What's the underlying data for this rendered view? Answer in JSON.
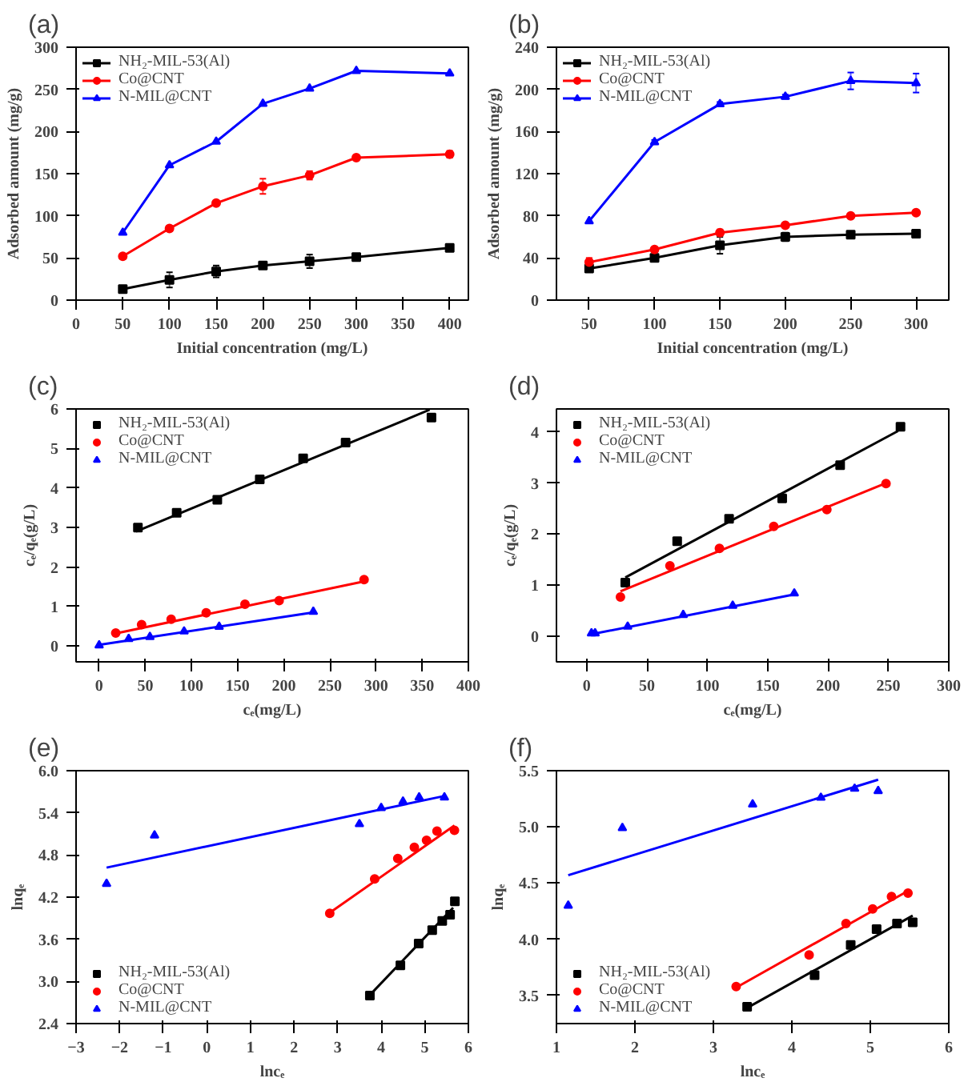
{
  "chart_data": [
    {
      "type": "line",
      "title": "(a)",
      "xlabel": "Initial concentration (mg/L)",
      "ylabel": "Adsorbed amount (mg/g)",
      "x": [
        50,
        100,
        150,
        200,
        250,
        300,
        400
      ],
      "xlim": [
        0,
        420
      ],
      "xticks": [
        0,
        50,
        100,
        150,
        200,
        250,
        300,
        350,
        400
      ],
      "ylim": [
        0,
        300
      ],
      "yticks": [
        0,
        50,
        100,
        150,
        200,
        250,
        300
      ],
      "grid": false,
      "legend": "top left",
      "series": [
        {
          "name": "NH₂-MIL-53(Al)",
          "color": "#000000",
          "marker": "square",
          "values": [
            13,
            24,
            34,
            41,
            46,
            51,
            62
          ],
          "errors": [
            2,
            9,
            7,
            3,
            8,
            3,
            3
          ]
        },
        {
          "name": "Co@CNT",
          "color": "#ff0000",
          "marker": "circle",
          "values": [
            52,
            85,
            115,
            135,
            148,
            169,
            173
          ],
          "errors": [
            3,
            3,
            3,
            9,
            5,
            3,
            4
          ]
        },
        {
          "name": "N-MIL@CNT",
          "color": "#0000ff",
          "marker": "triangle",
          "values": [
            80,
            160,
            188,
            233,
            251,
            272,
            269
          ]
        }
      ]
    },
    {
      "type": "line",
      "title": "(b)",
      "xlabel": "Initial concentration (mg/L)",
      "ylabel": "Adsorbed amount (mg/g)",
      "x": [
        50,
        100,
        150,
        200,
        250,
        300
      ],
      "xlim": [
        25,
        325
      ],
      "xticks": [
        50,
        100,
        150,
        200,
        250,
        300
      ],
      "ylim": [
        0,
        240
      ],
      "yticks": [
        0,
        40,
        80,
        120,
        160,
        200,
        240
      ],
      "grid": false,
      "legend": "top left",
      "series": [
        {
          "name": "NH₂-MIL-53(Al)",
          "color": "#000000",
          "marker": "square",
          "values": [
            30,
            40,
            52,
            60,
            62,
            63
          ],
          "errors": [
            2,
            2,
            8,
            4,
            2,
            3
          ]
        },
        {
          "name": "Co@CNT",
          "color": "#ff0000",
          "marker": "circle",
          "values": [
            36,
            48,
            64,
            71,
            80,
            83
          ],
          "errors": [
            4,
            2,
            3,
            2,
            2,
            2
          ]
        },
        {
          "name": "N-MIL@CNT",
          "color": "#0000ff",
          "marker": "triangle",
          "values": [
            75,
            150,
            186,
            193,
            208,
            206
          ],
          "errors": [
            null,
            2,
            2,
            2,
            8,
            9
          ]
        }
      ]
    },
    {
      "type": "scatter",
      "title": "(c)",
      "xlabel": "cₑ(mg/L)",
      "ylabel": "cₑ/qₑ(g/L)",
      "xlim": [
        -25,
        400
      ],
      "xticks": [
        0,
        50,
        100,
        150,
        200,
        250,
        300,
        350,
        400
      ],
      "ylim": [
        -0.4,
        6
      ],
      "yticks": [
        0,
        1,
        2,
        3,
        4,
        5,
        6
      ],
      "grid": false,
      "legend": "top left",
      "series": [
        {
          "name": "NH₂-MIL-53(Al)",
          "color": "#000000",
          "marker": "square",
          "x": [
            42,
            84,
            128,
            174,
            221,
            267,
            360
          ],
          "values": [
            3.0,
            3.37,
            3.7,
            4.22,
            4.75,
            5.15,
            5.78
          ]
        },
        {
          "name": "Co@CNT",
          "color": "#ff0000",
          "marker": "circle",
          "x": [
            18,
            46,
            78,
            116,
            158,
            195,
            287
          ],
          "values": [
            0.33,
            0.54,
            0.68,
            0.84,
            1.06,
            1.15,
            1.68
          ]
        },
        {
          "name": "N-MIL@CNT",
          "color": "#0000ff",
          "marker": "triangle",
          "x": [
            0,
            32,
            55,
            92,
            130,
            232
          ],
          "values": [
            0.02,
            0.18,
            0.23,
            0.37,
            0.49,
            0.87
          ]
        },
        {
          "type": "line",
          "color": "#000000",
          "marker": "none",
          "line_style": "solid",
          "x": [
            40,
            358
          ],
          "values": [
            2.9,
            5.98
          ]
        },
        {
          "type": "line",
          "color": "#ff0000",
          "marker": "none",
          "line_style": "solid",
          "x": [
            18,
            288
          ],
          "values": [
            0.32,
            1.64
          ]
        },
        {
          "type": "line",
          "color": "#0000ff",
          "marker": "none",
          "line_style": "solid",
          "x": [
            0,
            232
          ],
          "values": [
            0.03,
            0.85
          ]
        }
      ]
    },
    {
      "type": "scatter",
      "title": "(d)",
      "xlabel": "cₑ(mg/L)",
      "ylabel": "cₑ/qₑ(g/L)",
      "xlim": [
        -25,
        300
      ],
      "xticks": [
        0,
        50,
        100,
        150,
        200,
        250,
        300
      ],
      "ylim": [
        -0.5,
        4.45
      ],
      "yticks": [
        0,
        1,
        2,
        3,
        4
      ],
      "grid": false,
      "legend": "top left",
      "series": [
        {
          "name": "NH₂-MIL-53(Al)",
          "color": "#000000",
          "marker": "square",
          "x": [
            32,
            75,
            118,
            162,
            210,
            260
          ],
          "values": [
            1.05,
            1.86,
            2.3,
            2.7,
            3.35,
            4.1
          ]
        },
        {
          "name": "Co@CNT",
          "color": "#ff0000",
          "marker": "circle",
          "x": [
            28,
            69,
            110,
            155,
            199,
            248
          ],
          "values": [
            0.77,
            1.38,
            1.72,
            2.15,
            2.48,
            2.99
          ]
        },
        {
          "name": "N-MIL@CNT",
          "color": "#0000ff",
          "marker": "triangle",
          "x": [
            4,
            7,
            34,
            80,
            121,
            172
          ],
          "values": [
            0.06,
            0.06,
            0.19,
            0.42,
            0.6,
            0.84
          ]
        },
        {
          "type": "line",
          "color": "#000000",
          "marker": "none",
          "line_style": "solid",
          "x": [
            32,
            258
          ],
          "values": [
            1.15,
            4.02
          ]
        },
        {
          "type": "line",
          "color": "#ff0000",
          "marker": "none",
          "line_style": "solid",
          "x": [
            28,
            248
          ],
          "values": [
            0.88,
            3.0
          ]
        },
        {
          "type": "line",
          "color": "#0000ff",
          "marker": "none",
          "line_style": "solid",
          "x": [
            4,
            172
          ],
          "values": [
            0.04,
            0.82
          ]
        }
      ]
    },
    {
      "type": "scatter",
      "title": "(e)",
      "xlabel": "lncₑ",
      "ylabel": "lnqₑ",
      "xlim": [
        -3,
        6
      ],
      "xticks": [
        -3,
        -2,
        -1,
        0,
        1,
        2,
        3,
        4,
        5,
        6
      ],
      "ylim": [
        2.4,
        6.0
      ],
      "yticks": [
        2.4,
        {
          "value": 3.0,
          "label": "3.0"
        },
        3.6,
        4.2,
        4.8,
        5.4,
        {
          "value": 6.0,
          "label": "6.0"
        }
      ],
      "grid": false,
      "legend": "bottom left",
      "series": [
        {
          "name": "NH₂-MIL-53(Al)",
          "color": "#000000",
          "marker": "square",
          "x": [
            3.74,
            4.44,
            4.86,
            5.17,
            5.4,
            5.58,
            5.69
          ],
          "values": [
            2.8,
            3.23,
            3.54,
            3.73,
            3.86,
            3.95,
            4.14
          ]
        },
        {
          "name": "Co@CNT",
          "color": "#ff0000",
          "marker": "circle",
          "x": [
            2.82,
            3.85,
            4.38,
            4.76,
            5.04,
            5.28,
            5.68
          ],
          "values": [
            3.97,
            4.46,
            4.75,
            4.91,
            5.01,
            5.14,
            5.15
          ]
        },
        {
          "name": "N-MIL@CNT",
          "color": "#0000ff",
          "marker": "triangle",
          "x": [
            -2.3,
            -1.2,
            3.5,
            4.0,
            4.5,
            4.87,
            5.45
          ],
          "values": [
            4.39,
            5.08,
            5.24,
            5.47,
            5.56,
            5.62,
            5.62
          ]
        },
        {
          "type": "line",
          "color": "#000000",
          "marker": "none",
          "line_style": "solid",
          "x": [
            3.7,
            5.65
          ],
          "values": [
            2.78,
            4.05
          ]
        },
        {
          "type": "line",
          "color": "#ff0000",
          "marker": "none",
          "line_style": "solid",
          "x": [
            2.8,
            5.68
          ],
          "values": [
            3.97,
            5.22
          ]
        },
        {
          "type": "line",
          "color": "#0000ff",
          "marker": "none",
          "line_style": "solid",
          "x": [
            -2.3,
            5.45
          ],
          "values": [
            4.62,
            5.64
          ]
        }
      ]
    },
    {
      "type": "scatter",
      "title": "(f)",
      "xlabel": "lncₑ",
      "ylabel": "lnqₑ",
      "xlim": [
        1,
        6
      ],
      "xticks": [
        1,
        2,
        3,
        4,
        5,
        6
      ],
      "ylim": [
        3.25,
        5.5
      ],
      "yticks": [
        3.5,
        {
          "value": 4.0,
          "label": "4.0"
        },
        4.5,
        {
          "value": 5.0,
          "label": "5.0"
        },
        5.5
      ],
      "grid": false,
      "legend": "bottom left",
      "series": [
        {
          "name": "NH₂-MIL-53(Al)",
          "color": "#000000",
          "marker": "square",
          "x": [
            3.43,
            4.29,
            4.75,
            5.08,
            5.34,
            5.54
          ],
          "values": [
            3.4,
            3.68,
            3.95,
            4.09,
            4.14,
            4.15
          ]
        },
        {
          "name": "Co@CNT",
          "color": "#ff0000",
          "marker": "circle",
          "x": [
            3.29,
            4.22,
            4.69,
            5.03,
            5.27,
            5.48
          ],
          "values": [
            3.58,
            3.86,
            4.14,
            4.27,
            4.38,
            4.41
          ]
        },
        {
          "name": "N-MIL@CNT",
          "color": "#0000ff",
          "marker": "triangle",
          "x": [
            1.15,
            1.84,
            3.5,
            4.37,
            4.8,
            5.1
          ],
          "values": [
            4.3,
            4.99,
            5.2,
            5.26,
            5.34,
            5.32
          ]
        },
        {
          "type": "line",
          "color": "#000000",
          "marker": "none",
          "line_style": "solid",
          "x": [
            3.43,
            5.54
          ],
          "values": [
            3.39,
            4.21
          ]
        },
        {
          "type": "line",
          "color": "#ff0000",
          "marker": "none",
          "line_style": "solid",
          "x": [
            3.29,
            5.48
          ],
          "values": [
            3.57,
            4.43
          ]
        },
        {
          "type": "line",
          "color": "#0000ff",
          "marker": "none",
          "line_style": "solid",
          "x": [
            1.15,
            5.1
          ],
          "values": [
            4.57,
            5.42
          ]
        }
      ]
    }
  ]
}
